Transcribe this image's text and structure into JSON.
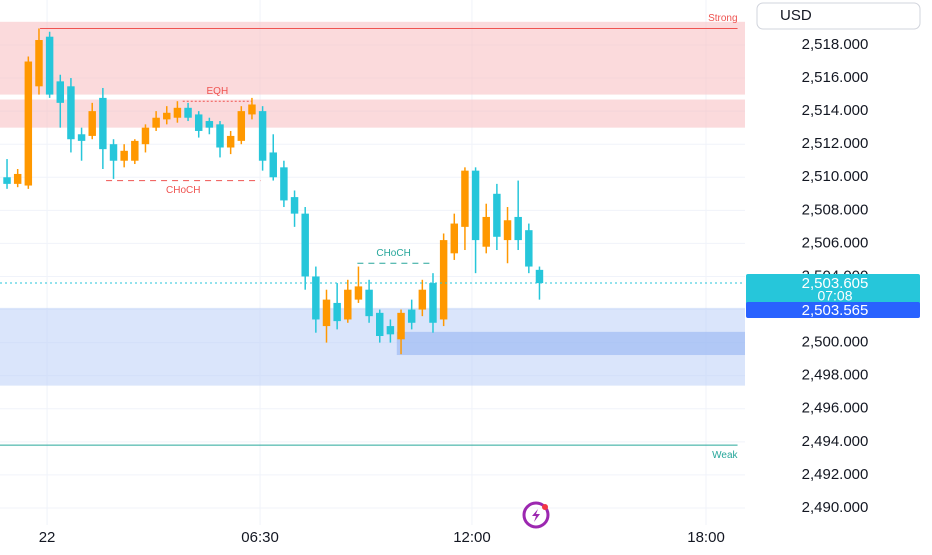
{
  "chart_data": {
    "type": "candlestick",
    "currency": "USD",
    "up_color": "#ff9800",
    "down_color": "#26c6da",
    "x": [
      0,
      1,
      2,
      3,
      4,
      5,
      6,
      7,
      8,
      9,
      10,
      11,
      12,
      13,
      14,
      15,
      16,
      17,
      18,
      19,
      20,
      21,
      22,
      23,
      24,
      25,
      26,
      27,
      28,
      29,
      30,
      31,
      32,
      33,
      34,
      35,
      36,
      37,
      38,
      39,
      40,
      41,
      42,
      43,
      44,
      45,
      46,
      47,
      48,
      49,
      50
    ],
    "open": [
      2510.0,
      2509.6,
      2509.5,
      2515.5,
      2518.5,
      2515.8,
      2515.5,
      2512.6,
      2512.5,
      2514.8,
      2512.0,
      2511.0,
      2511.0,
      2512.0,
      2513.0,
      2513.5,
      2513.6,
      2514.2,
      2513.8,
      2513.4,
      2513.2,
      2511.8,
      2512.2,
      2513.8,
      2514.0,
      2511.5,
      2510.6,
      2508.8,
      2507.8,
      2504.0,
      2501.0,
      2502.4,
      2501.4,
      2502.6,
      2503.2,
      2501.8,
      2501.0,
      2500.2,
      2502.0,
      2502.0,
      2503.6,
      2501.4,
      2505.4,
      2507.0,
      2510.4,
      2505.8,
      2509.0,
      2506.2,
      2507.6,
      2506.8,
      2504.4
    ],
    "high": [
      2511.1,
      2510.5,
      2517.3,
      2519.0,
      2518.8,
      2516.2,
      2516.0,
      2513.0,
      2514.5,
      2515.4,
      2512.3,
      2512.0,
      2512.3,
      2513.2,
      2514.0,
      2514.3,
      2514.6,
      2514.5,
      2514.0,
      2513.6,
      2513.4,
      2512.8,
      2514.3,
      2514.8,
      2514.3,
      2512.6,
      2511.0,
      2509.2,
      2508.2,
      2504.6,
      2503.2,
      2503.6,
      2503.8,
      2504.6,
      2503.8,
      2502.0,
      2501.4,
      2502.0,
      2502.6,
      2503.8,
      2504.2,
      2506.6,
      2507.8,
      2510.6,
      2510.6,
      2508.4,
      2509.6,
      2508.2,
      2509.8,
      2507.2,
      2504.6
    ],
    "low": [
      2509.3,
      2509.4,
      2509.3,
      2515.0,
      2514.8,
      2513.0,
      2511.5,
      2511.0,
      2512.3,
      2510.5,
      2509.9,
      2510.6,
      2510.8,
      2511.5,
      2512.8,
      2513.2,
      2513.3,
      2513.4,
      2512.4,
      2512.6,
      2511.2,
      2511.4,
      2512.0,
      2513.5,
      2510.4,
      2509.8,
      2508.2,
      2507.0,
      2503.2,
      2500.6,
      2500.0,
      2500.8,
      2501.2,
      2502.4,
      2501.2,
      2500.0,
      2500.0,
      2499.3,
      2500.8,
      2501.6,
      2500.6,
      2501.0,
      2505.0,
      2505.6,
      2504.2,
      2505.4,
      2505.6,
      2504.8,
      2505.6,
      2504.2,
      2502.6
    ],
    "close": [
      2509.6,
      2510.2,
      2517.0,
      2518.3,
      2515.0,
      2514.5,
      2512.3,
      2512.2,
      2514.0,
      2511.7,
      2511.0,
      2511.6,
      2512.2,
      2513.0,
      2513.6,
      2513.9,
      2514.2,
      2513.6,
      2512.8,
      2513.0,
      2511.8,
      2512.5,
      2514.0,
      2514.4,
      2511.0,
      2510.0,
      2508.6,
      2507.8,
      2504.0,
      2501.4,
      2502.6,
      2501.3,
      2503.2,
      2503.4,
      2501.6,
      2500.4,
      2500.5,
      2501.8,
      2501.2,
      2503.2,
      2501.2,
      2506.2,
      2507.2,
      2510.4,
      2506.2,
      2507.6,
      2506.4,
      2507.4,
      2506.2,
      2504.6,
      2503.6
    ],
    "xlim": [
      -0.66,
      69.3
    ],
    "xticks": [
      {
        "value": 3.76,
        "label": "22"
      },
      {
        "value": 23.76,
        "label": "06:30"
      },
      {
        "value": 43.66,
        "label": "12:00"
      },
      {
        "value": 65.64,
        "label": "18:00"
      }
    ],
    "ylim": [
      2488.97,
      2520.72
    ],
    "yticks": [
      {
        "value": 2490,
        "label": "2,490.000"
      },
      {
        "value": 2492,
        "label": "2,492.000"
      },
      {
        "value": 2494,
        "label": "2,494.000"
      },
      {
        "value": 2496,
        "label": "2,496.000"
      },
      {
        "value": 2498,
        "label": "2,498.000"
      },
      {
        "value": 2500,
        "label": "2,500.000"
      },
      {
        "value": 2502,
        "label": "2,502.000"
      },
      {
        "value": 2504,
        "label": "2,504.000"
      },
      {
        "value": 2506,
        "label": "2,506.000"
      },
      {
        "value": 2508,
        "label": "2,508.000"
      },
      {
        "value": 2510,
        "label": "2,510.000"
      },
      {
        "value": 2512,
        "label": "2,512.000"
      },
      {
        "value": 2514,
        "label": "2,514.000"
      },
      {
        "value": 2516,
        "label": "2,516.000"
      },
      {
        "value": 2518,
        "label": "2,518.000"
      }
    ],
    "grid": true,
    "zones": [
      {
        "top": 2519.4,
        "bottom": 2515.0,
        "start": -0.66,
        "color": "#f8bbc0"
      },
      {
        "top": 2514.7,
        "bottom": 2513.0,
        "start": -0.66,
        "color": "#f8bbc0"
      },
      {
        "top": 2502.1,
        "bottom": 2497.4,
        "start": -0.66,
        "color": "#bbd0f8"
      },
      {
        "top": 2500.65,
        "bottom": 2499.25,
        "start": 36.6,
        "color": "#8fb0f3"
      }
    ],
    "levels": [
      {
        "name": "Strong",
        "value": 2519.0,
        "start": 3.1,
        "end": 68.6,
        "color": "#ef5350",
        "style": "solid",
        "label_pos": "above"
      },
      {
        "name": "Weak",
        "value": 2493.8,
        "start": -0.66,
        "end": 68.6,
        "color": "#26a69a",
        "style": "solid",
        "label_pos": "below"
      },
      {
        "name": "EQH",
        "value": 2514.6,
        "start": 16.5,
        "end": 23.0,
        "color": "#ef5350",
        "style": "dotted",
        "label_pos": "above"
      },
      {
        "name": "CHoCH",
        "value": 2509.8,
        "start": 9.3,
        "end": 23.8,
        "color": "#ef5350",
        "style": "dashed",
        "label_pos": "below"
      },
      {
        "name": "CHoCH",
        "value": 2504.8,
        "start": 32.9,
        "end": 39.7,
        "color": "#26a69a",
        "style": "dashed",
        "label_pos": "above"
      }
    ],
    "last_price": {
      "value": 2503.605,
      "label": "2,503.605"
    },
    "countdown": "07:08",
    "bid_price": {
      "value": 2503.565,
      "label": "2,503.565"
    }
  }
}
